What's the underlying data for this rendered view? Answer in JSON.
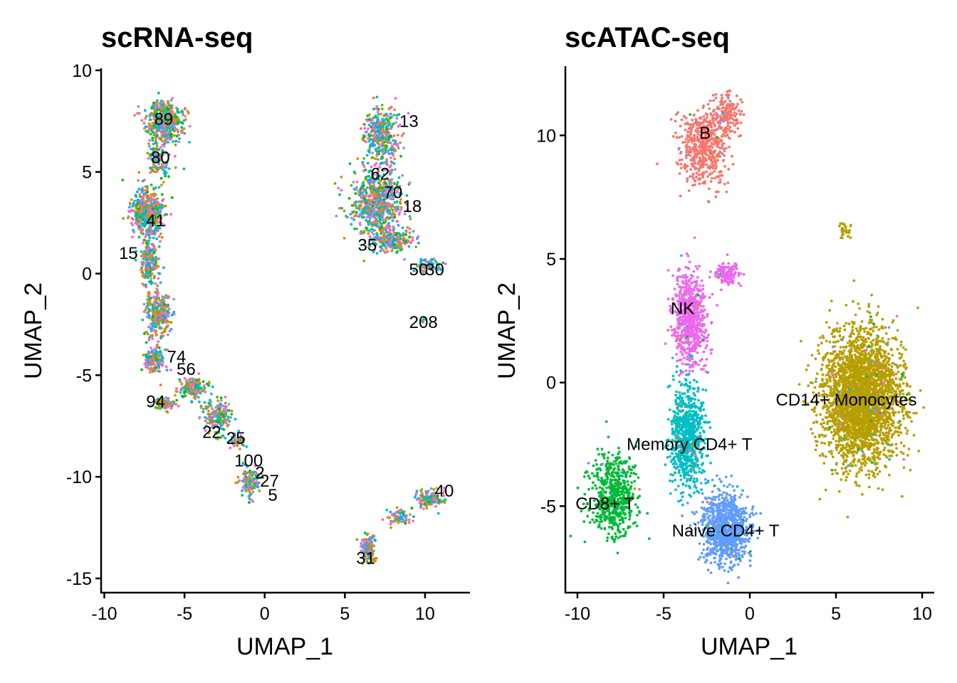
{
  "chart_data": [
    {
      "type": "scatter",
      "title": "scRNA-seq",
      "xlabel": "UMAP_1",
      "ylabel": "UMAP_2",
      "xlim": [
        -10.2,
        12.8
      ],
      "ylim": [
        -15.7,
        10.1
      ],
      "xticks": [
        -10,
        -5,
        0,
        5,
        10
      ],
      "yticks": [
        -15,
        -10,
        -5,
        0,
        5,
        10
      ],
      "xtick_labels": [
        "-10",
        "-5",
        "0",
        "5",
        "10"
      ],
      "ytick_labels": [
        "-15",
        "-10",
        "-5",
        "0",
        "5",
        "10"
      ],
      "grid": false,
      "legend": "none",
      "point_colors": [
        "#F8766D",
        "#E68613",
        "#CD9600",
        "#ABA300",
        "#7CAE00",
        "#0CB702",
        "#00BE67",
        "#00C19A",
        "#00BFC4",
        "#00B8E7",
        "#00A9FF",
        "#8494FF",
        "#C77CFF",
        "#ED68ED",
        "#FF61CC",
        "#FF68A1"
      ],
      "point_clouds": [
        {
          "center": [
            -6.3,
            7.5
          ],
          "spread": [
            1.0,
            0.9
          ],
          "n": 500
        },
        {
          "center": [
            -6.6,
            5.6
          ],
          "spread": [
            0.6,
            0.8
          ],
          "n": 120
        },
        {
          "center": [
            -7.3,
            3.0
          ],
          "spread": [
            0.9,
            1.1
          ],
          "n": 500
        },
        {
          "center": [
            -7.2,
            0.5
          ],
          "spread": [
            0.5,
            1.0
          ],
          "n": 200
        },
        {
          "center": [
            -6.6,
            -2.0
          ],
          "spread": [
            0.7,
            1.1
          ],
          "n": 300
        },
        {
          "center": [
            -6.9,
            -4.3
          ],
          "spread": [
            0.6,
            0.6
          ],
          "n": 150
        },
        {
          "center": [
            -4.5,
            -5.6
          ],
          "spread": [
            0.8,
            0.5
          ],
          "n": 150
        },
        {
          "center": [
            -6.3,
            -6.4
          ],
          "spread": [
            0.6,
            0.3
          ],
          "n": 90
        },
        {
          "center": [
            -2.9,
            -7.0
          ],
          "spread": [
            0.8,
            0.8
          ],
          "n": 190
        },
        {
          "center": [
            -1.7,
            -8.2
          ],
          "spread": [
            0.4,
            0.3
          ],
          "n": 40
        },
        {
          "center": [
            -0.9,
            -10.3
          ],
          "spread": [
            0.5,
            0.6
          ],
          "n": 130
        },
        {
          "center": [
            7.3,
            6.8
          ],
          "spread": [
            1.0,
            1.2
          ],
          "n": 330
        },
        {
          "center": [
            7.0,
            3.5
          ],
          "spread": [
            1.4,
            1.6
          ],
          "n": 700
        },
        {
          "center": [
            8.0,
            1.6
          ],
          "spread": [
            1.1,
            0.5
          ],
          "n": 220
        },
        {
          "center": [
            10.2,
            0.4
          ],
          "spread": [
            0.7,
            0.3
          ],
          "n": 70
        },
        {
          "center": [
            9.9,
            -2.3
          ],
          "spread": [
            0.12,
            0.12
          ],
          "n": 6
        },
        {
          "center": [
            10.3,
            -11.1
          ],
          "spread": [
            0.8,
            0.4
          ],
          "n": 140
        },
        {
          "center": [
            8.3,
            -12.0
          ],
          "spread": [
            0.7,
            0.3
          ],
          "n": 70
        },
        {
          "center": [
            6.5,
            -13.5
          ],
          "spread": [
            0.4,
            0.7
          ],
          "n": 130
        }
      ],
      "labels": [
        {
          "text": "208",
          "x": 9.9,
          "y": -2.4
        },
        {
          "text": "100",
          "x": -1.0,
          "y": -9.2
        },
        {
          "text": "22",
          "x": -3.3,
          "y": -7.8
        },
        {
          "text": "25",
          "x": -1.8,
          "y": -8.1
        },
        {
          "text": "2",
          "x": -0.3,
          "y": -9.8
        },
        {
          "text": "27",
          "x": 0.3,
          "y": -10.2
        },
        {
          "text": "5",
          "x": 0.5,
          "y": -10.9
        },
        {
          "text": "56",
          "x": -4.9,
          "y": -4.7
        },
        {
          "text": "74",
          "x": -5.5,
          "y": -4.1
        },
        {
          "text": "80",
          "x": -6.5,
          "y": 5.7
        },
        {
          "text": "30",
          "x": 10.6,
          "y": 0.2
        },
        {
          "text": "50",
          "x": 9.6,
          "y": 0.2
        },
        {
          "text": "18",
          "x": 9.2,
          "y": 3.3
        },
        {
          "text": "13",
          "x": 9.0,
          "y": 7.5
        },
        {
          "text": "40",
          "x": 11.2,
          "y": -10.7
        },
        {
          "text": "31",
          "x": 6.3,
          "y": -14.0
        },
        {
          "text": "15",
          "x": -8.5,
          "y": 1.0
        },
        {
          "text": "41",
          "x": -6.8,
          "y": 2.6
        },
        {
          "text": "89",
          "x": -6.3,
          "y": 7.6
        },
        {
          "text": "62",
          "x": 7.2,
          "y": 4.9
        },
        {
          "text": "70",
          "x": 8.0,
          "y": 4.0
        },
        {
          "text": "94",
          "x": -6.8,
          "y": -6.3
        },
        {
          "text": "35",
          "x": 6.4,
          "y": 1.4
        }
      ]
    },
    {
      "type": "scatter",
      "title": "scATAC-seq",
      "xlabel": "UMAP_1",
      "ylabel": "UMAP_2",
      "xlim": [
        -10.7,
        10.7
      ],
      "ylim": [
        -8.5,
        12.8
      ],
      "xticks": [
        -10,
        -5,
        0,
        5,
        10
      ],
      "yticks": [
        -5,
        0,
        5,
        10
      ],
      "xtick_labels": [
        "-10",
        "-5",
        "0",
        "5",
        "10"
      ],
      "ytick_labels": [
        "-5",
        "0",
        "5",
        "10"
      ],
      "grid": false,
      "legend": "none",
      "clusters": [
        {
          "name": "B",
          "color": "#F8766D",
          "label_x": -2.6,
          "label_y": 10.1,
          "blobs": [
            {
              "center": [
                -2.6,
                9.6
              ],
              "spread": [
                1.2,
                1.3
              ],
              "n": 550
            },
            {
              "center": [
                -1.2,
                10.9
              ],
              "spread": [
                0.6,
                0.6
              ],
              "n": 120
            }
          ]
        },
        {
          "name": "NK",
          "color": "#ED68ED",
          "label_x": -3.9,
          "label_y": 3.0,
          "blobs": [
            {
              "center": [
                -3.5,
                2.6
              ],
              "spread": [
                0.8,
                1.6
              ],
              "n": 700
            },
            {
              "center": [
                -1.3,
                4.4
              ],
              "spread": [
                0.6,
                0.4
              ],
              "n": 130
            }
          ]
        },
        {
          "name": "Memory CD4+ T",
          "color": "#00BFC4",
          "label_x": -3.5,
          "label_y": -2.5,
          "blobs": [
            {
              "center": [
                -3.6,
                -2.2
              ],
              "spread": [
                0.8,
                1.7
              ],
              "n": 800
            }
          ]
        },
        {
          "name": "Naive CD4+ T",
          "color": "#619CFF",
          "label_x": -1.4,
          "label_y": -6.0,
          "blobs": [
            {
              "center": [
                -1.4,
                -5.9
              ],
              "spread": [
                1.1,
                1.2
              ],
              "n": 900
            }
          ]
        },
        {
          "name": "CD8+ T",
          "color": "#00BA38",
          "label_x": -8.4,
          "label_y": -4.9,
          "blobs": [
            {
              "center": [
                -7.9,
                -4.6
              ],
              "spread": [
                1.1,
                1.4
              ],
              "n": 600
            }
          ]
        },
        {
          "name": "CD14+ Monocytes",
          "color": "#B79F00",
          "label_x": 5.6,
          "label_y": -0.7,
          "blobs": [
            {
              "center": [
                6.5,
                -0.6
              ],
              "spread": [
                1.8,
                2.2
              ],
              "n": 3000
            },
            {
              "center": [
                5.5,
                6.2
              ],
              "spread": [
                0.3,
                0.3
              ],
              "n": 30
            }
          ]
        }
      ],
      "stray_colors": [
        "#B79F00",
        "#F8766D",
        "#00BA38",
        "#619CFF",
        "#ED68ED",
        "#00BFC4"
      ]
    }
  ]
}
